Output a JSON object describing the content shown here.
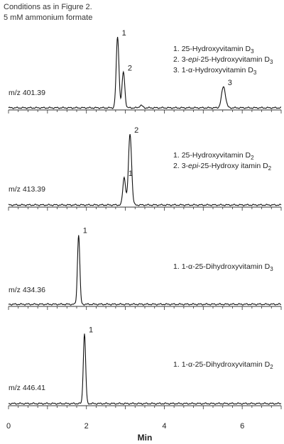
{
  "header": {
    "line1": "Conditions as in Figure 2.",
    "line2": "5 mM ammonium formate"
  },
  "chart_data": {
    "type": "line",
    "xlabel": "Min",
    "xlim": [
      0,
      7
    ],
    "x_ticks": [
      "0",
      "2",
      "4",
      "6"
    ],
    "x_tick_values": [
      0,
      2,
      4,
      6
    ],
    "panels": [
      {
        "mz_label": "m/z 401.39",
        "legend": [
          {
            "num": "1.",
            "text": "25-Hydroxyvitamin D",
            "sub": "3",
            "epi": ""
          },
          {
            "num": "2.",
            "text": "-25-Hydroxyvitamin D",
            "sub": "3",
            "epi": "3-epi"
          },
          {
            "num": "3.",
            "text": "1-α-Hydroxyvitamin D",
            "sub": "3",
            "epi": ""
          }
        ],
        "peaks": [
          {
            "label": "1",
            "rt": 2.8,
            "height": 0.87,
            "width": 0.035
          },
          {
            "label": "2",
            "rt": 2.95,
            "height": 0.44,
            "width": 0.035
          },
          {
            "label": "",
            "rt": 3.4,
            "height": 0.03,
            "width": 0.04
          },
          {
            "label": "3",
            "rt": 5.52,
            "height": 0.26,
            "width": 0.05
          }
        ]
      },
      {
        "mz_label": "m/z 413.39",
        "legend": [
          {
            "num": "1.",
            "text": "25-Hydroxyvitamin D",
            "sub": "2",
            "epi": ""
          },
          {
            "num": "2.",
            "text": "-25-Hydroxy itamin D",
            "sub": "2",
            "epi": "3-epi"
          }
        ],
        "peaks": [
          {
            "label": "1",
            "rt": 2.97,
            "height": 0.34,
            "width": 0.035
          },
          {
            "label": "2",
            "rt": 3.12,
            "height": 0.87,
            "width": 0.04
          }
        ]
      },
      {
        "mz_label": "m/z 434.36",
        "legend": [
          {
            "num": "1.",
            "text": "1-α-25-Dihydroxyvitamin D",
            "sub": "3",
            "epi": ""
          }
        ],
        "peaks": [
          {
            "label": "1",
            "rt": 1.8,
            "height": 0.84,
            "width": 0.03
          }
        ]
      },
      {
        "mz_label": "m/z 446.41",
        "legend": [
          {
            "num": "1.",
            "text": "1-α-25-Dihydroxyvitamin D",
            "sub": "2",
            "epi": ""
          }
        ],
        "peaks": [
          {
            "label": "1",
            "rt": 1.95,
            "height": 0.84,
            "width": 0.03
          }
        ]
      }
    ]
  }
}
